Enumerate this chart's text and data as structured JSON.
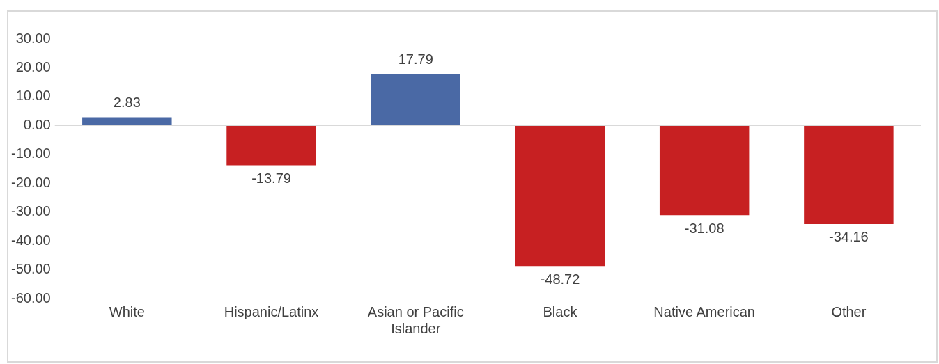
{
  "chart_data": {
    "type": "bar",
    "categories": [
      "White",
      "Hispanic/Latinx",
      "Asian or Pacific Islander",
      "Black",
      "Native American",
      "Other"
    ],
    "values": [
      2.83,
      -13.79,
      17.79,
      -48.72,
      -31.08,
      -34.16
    ],
    "colors": [
      "#4a69a5",
      "#c72022",
      "#4a69a5",
      "#c72022",
      "#c72022",
      "#c72022"
    ],
    "ylim": [
      -60,
      30
    ],
    "yticks": [
      {
        "value": -60,
        "label": "-60.00"
      },
      {
        "value": -50,
        "label": "-50.00"
      },
      {
        "value": -40,
        "label": "-40.00"
      },
      {
        "value": -30,
        "label": "-30.00"
      },
      {
        "value": -20,
        "label": "-20.00"
      },
      {
        "value": -10,
        "label": "-10.00"
      },
      {
        "value": 0,
        "label": "0.00"
      },
      {
        "value": 10,
        "label": "10.00"
      },
      {
        "value": 20,
        "label": "20.00"
      },
      {
        "value": 30,
        "label": "30.00"
      }
    ],
    "ref_lines": [
      {
        "axis": "y",
        "value": 0,
        "color": "#d9d9d9"
      }
    ],
    "grid": false,
    "legend": false,
    "data_labels": true
  }
}
